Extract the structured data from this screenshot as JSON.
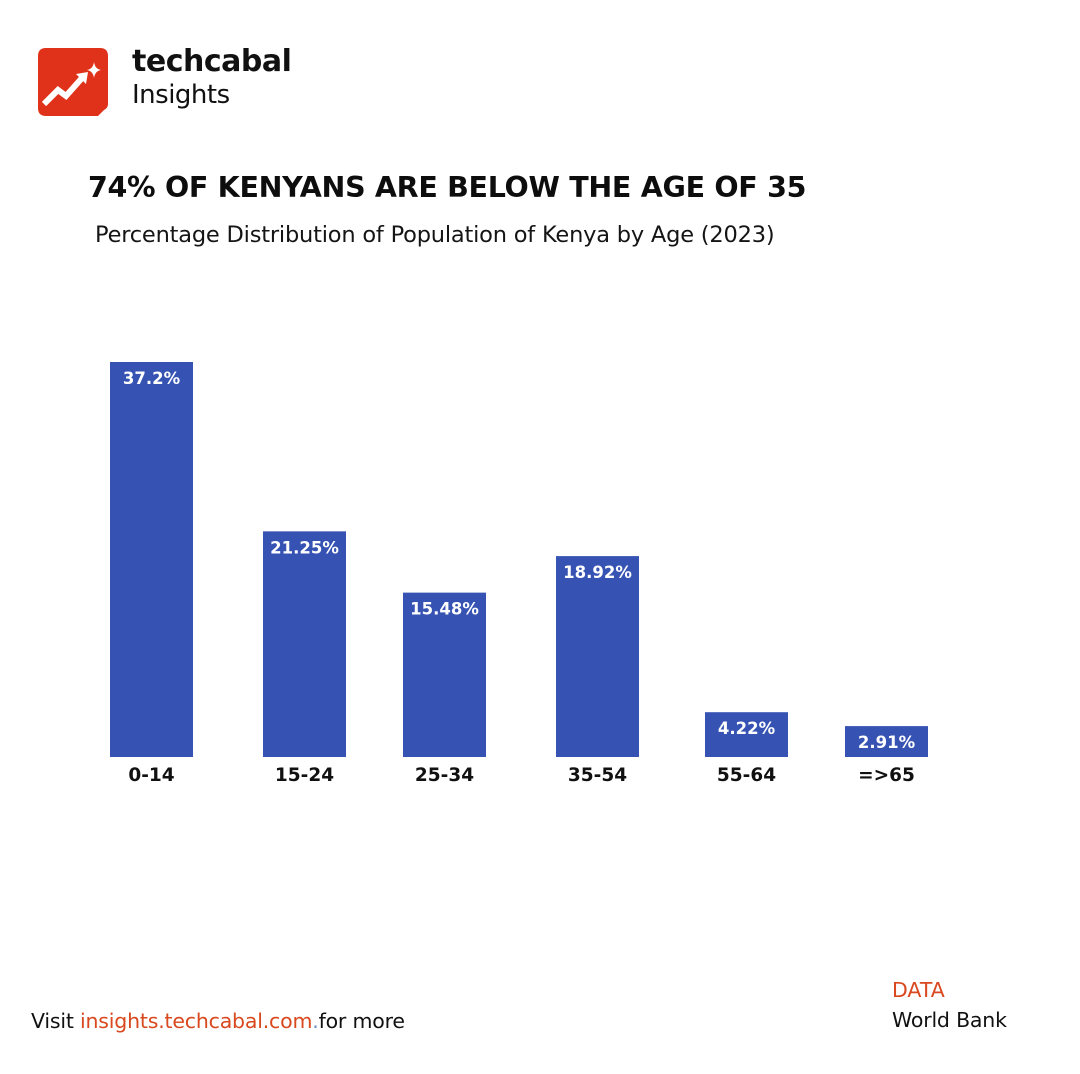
{
  "brand": {
    "name": "techcabal",
    "sub": "Insights",
    "accent": "#e0321a"
  },
  "footer": {
    "visit_prefix": "Visit ",
    "link_text": "insights.techcabal.com",
    "link_dot": ".",
    "visit_suffix": "for more",
    "source_label": "DATA",
    "source_value": "World Bank"
  },
  "colors": {
    "bar": "#3653b3",
    "bar_label": "#ffffff",
    "accent_text": "#d9481e"
  },
  "chart_data": {
    "type": "bar",
    "title": "74% OF KENYANS ARE BELOW THE AGE OF 35",
    "subtitle": "Percentage Distribution of Population of Kenya by Age (2023)",
    "xlabel": "",
    "ylabel": "",
    "categories": [
      "0-14",
      "15-24",
      "25-34",
      "35-54",
      "55-64",
      "=>65"
    ],
    "values": [
      37.2,
      21.25,
      15.48,
      18.92,
      4.22,
      2.91
    ],
    "data_labels": [
      "37.2%",
      "21.25%",
      "15.48%",
      "18.92%",
      "4.22%",
      "2.91%"
    ],
    "ylim": [
      0,
      37.2
    ],
    "grid": false,
    "legend": "none"
  }
}
